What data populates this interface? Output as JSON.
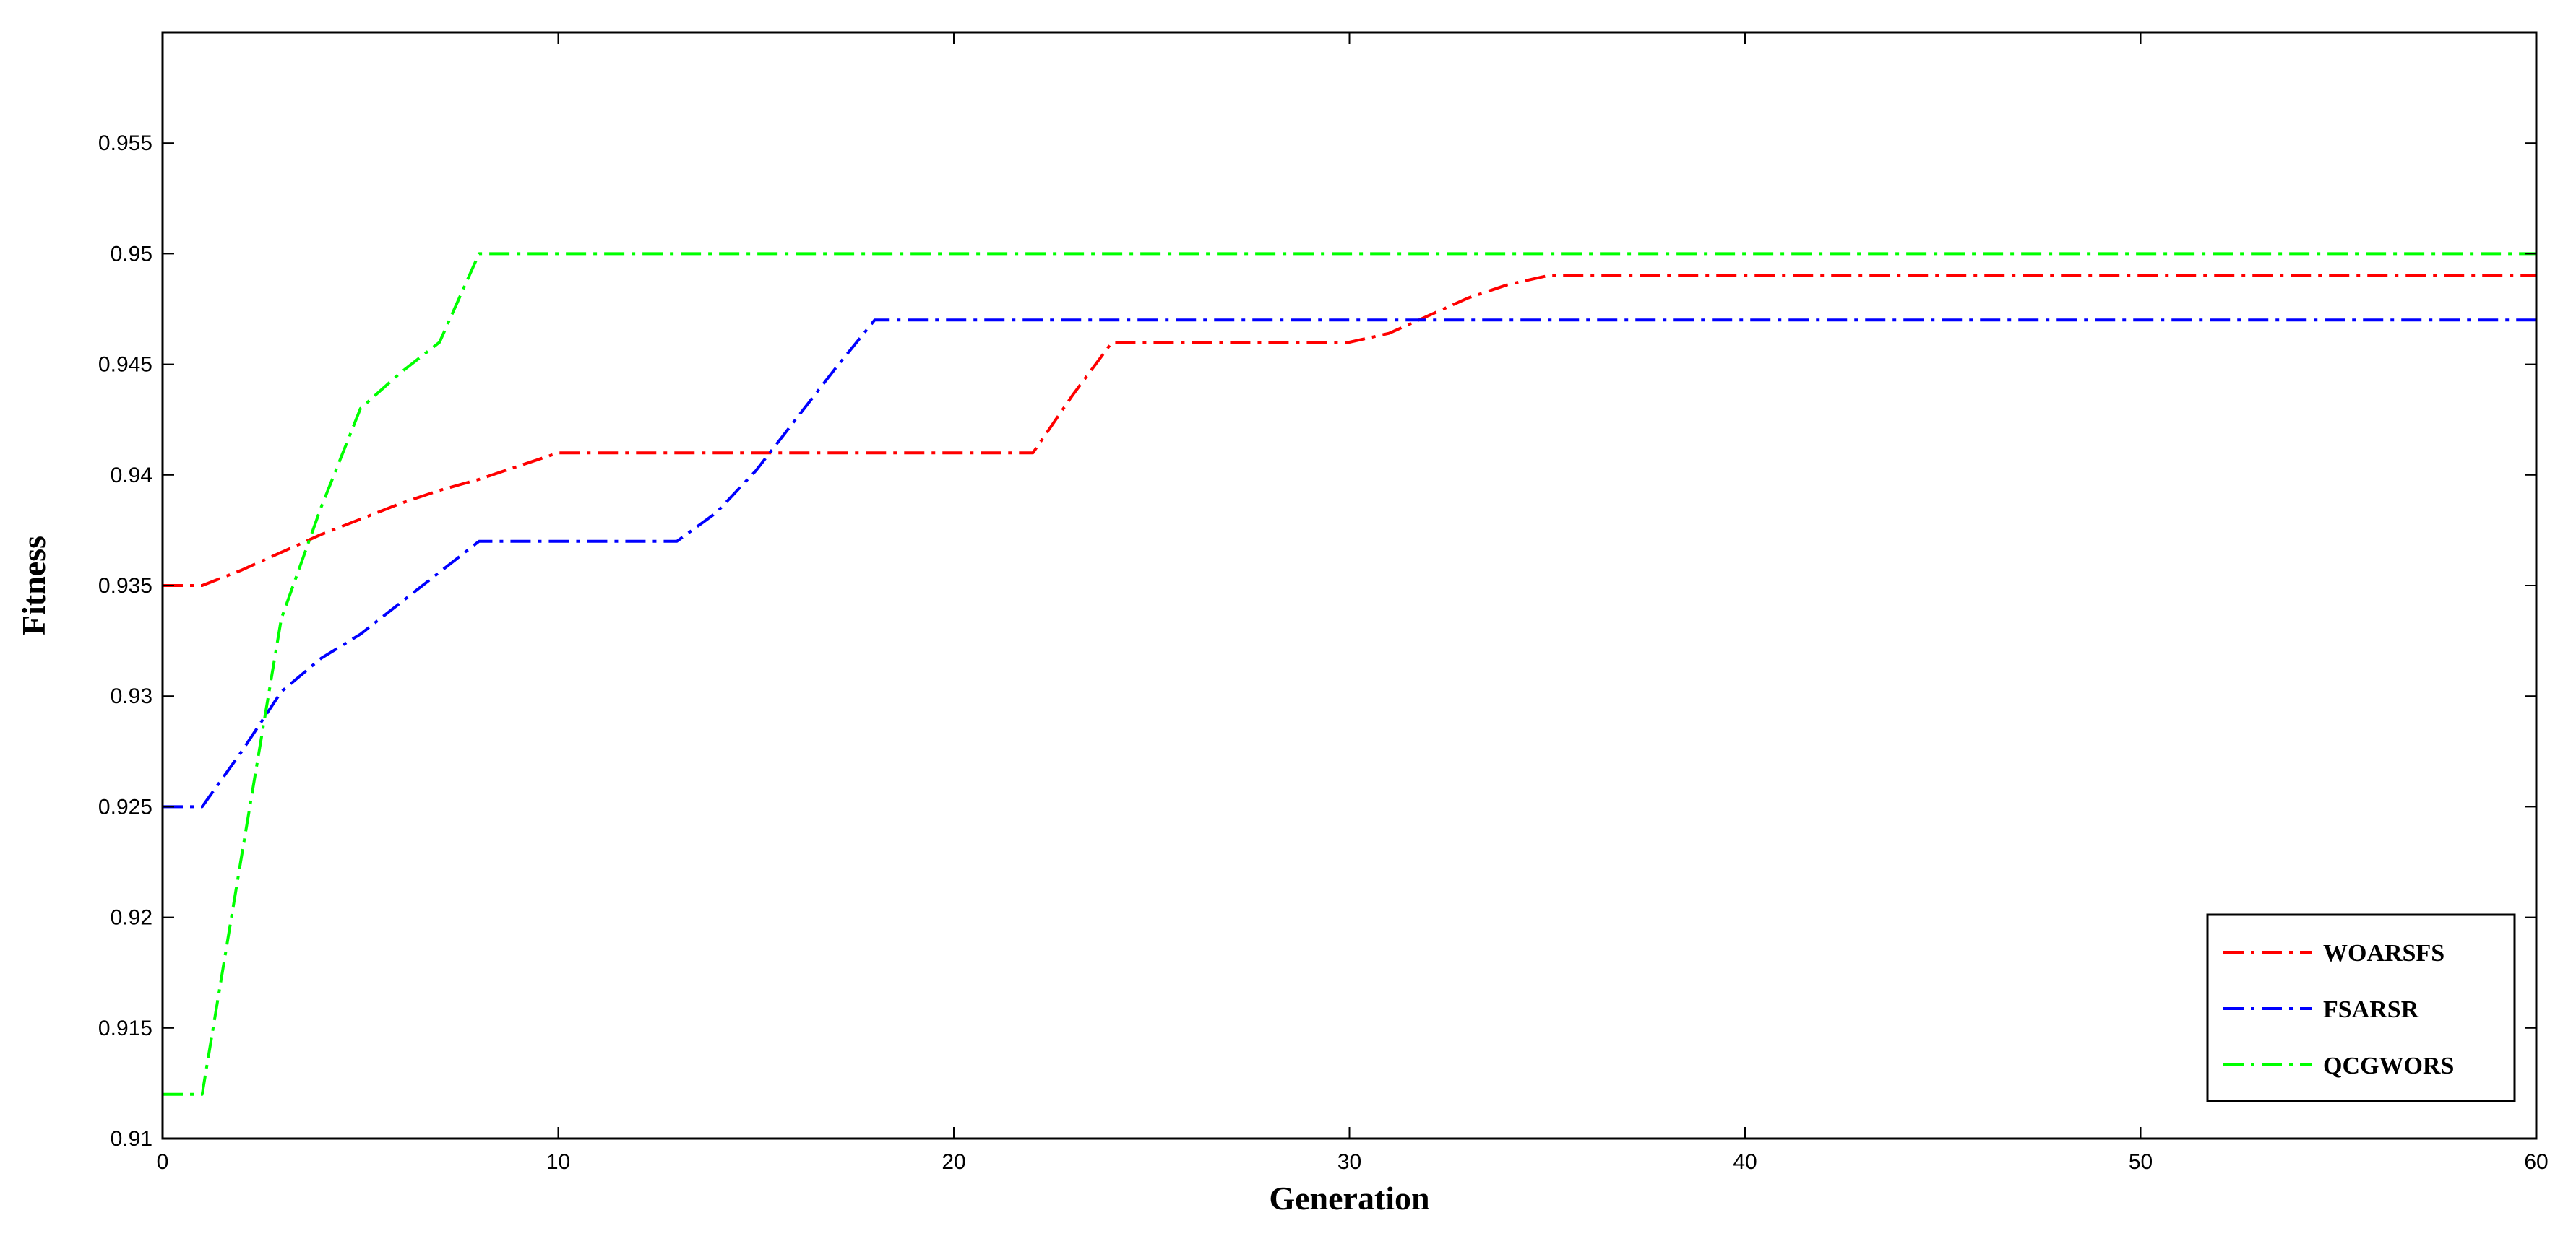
{
  "chart_data": {
    "type": "line",
    "title": "",
    "xlabel": "Generation",
    "ylabel": "Fitness",
    "xlim": [
      0,
      60
    ],
    "ylim": [
      0.91,
      0.96
    ],
    "xticks": [
      0,
      10,
      20,
      30,
      40,
      50,
      60
    ],
    "xtick_labels": [
      "0",
      "10",
      "20",
      "30",
      "40",
      "50",
      "60"
    ],
    "yticks": [
      0.91,
      0.915,
      0.92,
      0.925,
      0.93,
      0.935,
      0.94,
      0.945,
      0.95,
      0.955
    ],
    "ytick_labels": [
      "0.91",
      "0.915",
      "0.92",
      "0.925",
      "0.93",
      "0.935",
      "0.94",
      "0.945",
      "0.95",
      "0.955"
    ],
    "grid": false,
    "legend_position": "bottom-right",
    "series": [
      {
        "name": "WOARSFS",
        "color": "#ff0000",
        "line_style": "dash-dot",
        "x": [
          0,
          1,
          2,
          3,
          4,
          5,
          6,
          7,
          8,
          9,
          10,
          11,
          12,
          13,
          14,
          15,
          16,
          17,
          18,
          19,
          20,
          21,
          22,
          23,
          24,
          25,
          26,
          27,
          28,
          29,
          30,
          31,
          32,
          33,
          34,
          35,
          60
        ],
        "y": [
          0.935,
          0.935,
          0.9357,
          0.9365,
          0.9373,
          0.938,
          0.9387,
          0.9393,
          0.9398,
          0.9404,
          0.941,
          0.941,
          0.941,
          0.941,
          0.941,
          0.941,
          0.941,
          0.941,
          0.941,
          0.941,
          0.941,
          0.941,
          0.941,
          0.9436,
          0.946,
          0.946,
          0.946,
          0.946,
          0.946,
          0.946,
          0.946,
          0.9464,
          0.9472,
          0.948,
          0.9486,
          0.949,
          0.949
        ]
      },
      {
        "name": "FSARSR",
        "color": "#0000ff",
        "line_style": "dash-dot",
        "x": [
          0,
          1,
          2,
          3,
          4,
          5,
          6,
          7,
          8,
          9,
          10,
          11,
          12,
          13,
          14,
          15,
          16,
          17,
          18,
          60
        ],
        "y": [
          0.925,
          0.925,
          0.9275,
          0.9302,
          0.9317,
          0.9328,
          0.9342,
          0.9356,
          0.937,
          0.937,
          0.937,
          0.937,
          0.937,
          0.937,
          0.9383,
          0.9402,
          0.9425,
          0.9448,
          0.947,
          0.947
        ]
      },
      {
        "name": "QCGWORS",
        "color": "#00ff00",
        "line_style": "dash-dot",
        "x": [
          0,
          1,
          2,
          3,
          4,
          5,
          6,
          7,
          8,
          60
        ],
        "y": [
          0.912,
          0.912,
          0.9228,
          0.9335,
          0.9385,
          0.943,
          0.9446,
          0.946,
          0.95,
          0.95
        ]
      }
    ]
  }
}
